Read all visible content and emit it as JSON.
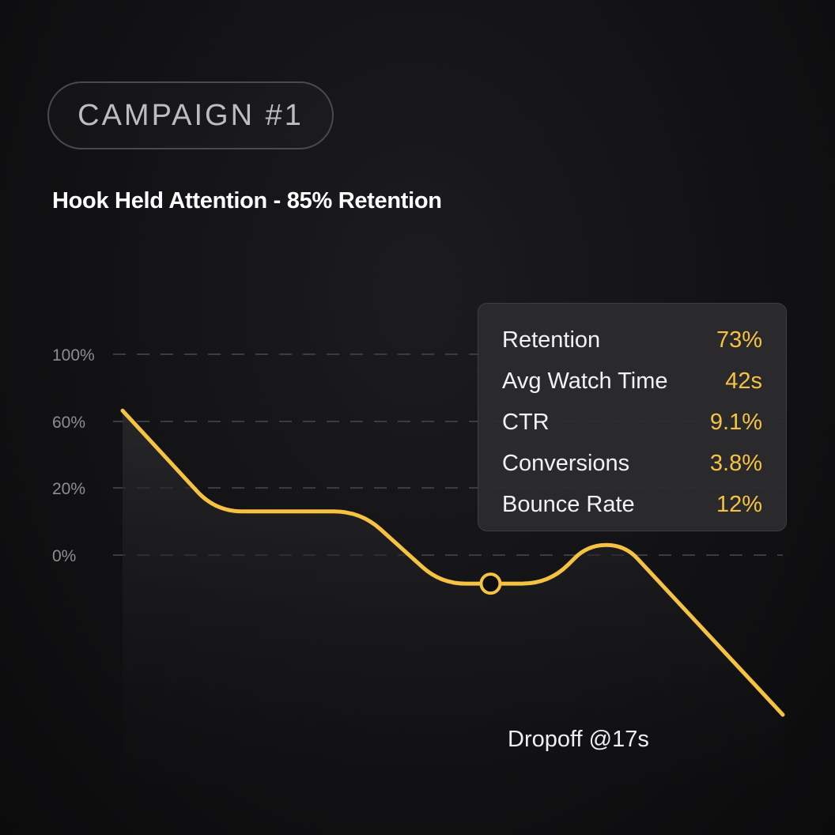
{
  "badge": {
    "label": "CAMPAIGN #1"
  },
  "header": {
    "title": "Hook Held Attention - 85% Retention"
  },
  "colors": {
    "accent": "#f5c242",
    "background": "#121214",
    "gridline": "#3c3c40",
    "tooltip_bg": "#2c2c2e"
  },
  "tooltip": {
    "rows": [
      {
        "label": "Retention",
        "value": "73%"
      },
      {
        "label": "Avg Watch Time",
        "value": "42s"
      },
      {
        "label": "CTR",
        "value": "9.1%"
      },
      {
        "label": "Conversions",
        "value": "3.8%"
      },
      {
        "label": "Bounce Rate",
        "value": "12%"
      }
    ]
  },
  "annotation": {
    "label": "Dropoff @17s"
  },
  "chart_data": {
    "type": "line",
    "title": "Hook Held Attention - 85% Retention",
    "xlabel": "",
    "ylabel": "",
    "y_ticks": [
      "100%",
      "60%",
      "20%",
      "0%"
    ],
    "y_tick_values": [
      100,
      60,
      20,
      0
    ],
    "grid": true,
    "grid_style": "dashed",
    "series": [
      {
        "color": "#f5c242",
        "points": [
          {
            "x": 0,
            "y": 86
          },
          {
            "x": 4.3,
            "y": 26
          },
          {
            "x": 11,
            "y": 26
          },
          {
            "x": 14.7,
            "y": -17
          },
          {
            "x": 17,
            "y": -17
          },
          {
            "x": 19.7,
            "y": -17
          },
          {
            "x": 21.5,
            "y": 6
          },
          {
            "x": 23.2,
            "y": 6
          },
          {
            "x": 30.5,
            "y": -95
          }
        ]
      }
    ],
    "highlight": {
      "x": 17,
      "y": -17,
      "label": "Dropoff @17s"
    }
  }
}
